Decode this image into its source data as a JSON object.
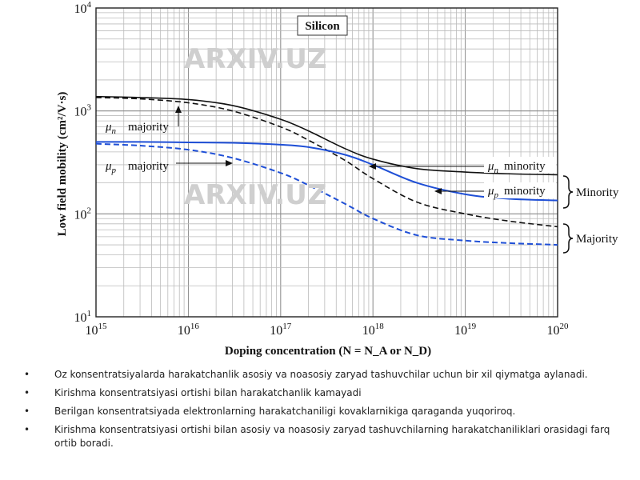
{
  "chart_data": {
    "type": "line",
    "title": "Silicon",
    "xlabel": "Doping concentration (N = N_A or N_D)",
    "ylabel": "Low field mobility (cm²/V·s)",
    "x_scale": "log",
    "y_scale": "log",
    "xlim": [
      1000000000000000.0,
      1e+20
    ],
    "ylim": [
      10,
      10000
    ],
    "grid": true,
    "x_ticks": [
      "10^15",
      "10^16",
      "10^17",
      "10^18",
      "10^19",
      "10^20"
    ],
    "y_ticks": [
      "10^1",
      "10^2",
      "10^3",
      "10^4"
    ],
    "x": [
      1000000000000000.0,
      3000000000000000.0,
      1e+16,
      3e+16,
      1e+17,
      2e+17,
      5e+17,
      1e+18,
      3e+18,
      1e+19,
      3e+19,
      1e+20
    ],
    "series": [
      {
        "name": "μn minority",
        "color": "#111111",
        "style": "solid",
        "values": [
          1380,
          1350,
          1290,
          1130,
          830,
          640,
          430,
          340,
          275,
          255,
          245,
          240
        ]
      },
      {
        "name": "μn majority",
        "color": "#111111",
        "style": "dashed",
        "values": [
          1350,
          1310,
          1200,
          1000,
          700,
          520,
          330,
          220,
          130,
          100,
          85,
          75
        ]
      },
      {
        "name": "μp minority",
        "color": "#1f4fd6",
        "style": "solid",
        "values": [
          500,
          500,
          495,
          490,
          470,
          445,
          375,
          300,
          200,
          155,
          140,
          135
        ]
      },
      {
        "name": "μp majority",
        "color": "#1f4fd6",
        "style": "dashed",
        "values": [
          480,
          460,
          420,
          350,
          250,
          190,
          125,
          90,
          62,
          55,
          52,
          50
        ]
      }
    ],
    "annotations": {
      "mu_n_majority": "majority",
      "mu_p_majority": "majority",
      "mu_n_minority": "minority",
      "mu_p_minority": "minority",
      "brace_minority": "Minority",
      "brace_majority": "Majority"
    }
  },
  "watermark": "ARXIV.UZ",
  "bullets": [
    "Oz konsentratsiyalarda harakatchanlik asosiy va noasosiy zaryad tashuvchilar uchun bir xil qiymatga aylanadi.",
    "Kirishma konsentratsiyasi ortishi bilan harakatchanlik kamayadi",
    "Berilgan konsentratsiyada elektronlarning harakatchaniligi kovaklarnikiga qaraganda yuqoriroq.",
    "Kirishma konsentratsiyasi ortishi bilan asosiy va noasosiy zaryad tashuvchilarning harakatchaniliklari orasidagi farq ortib boradi."
  ]
}
